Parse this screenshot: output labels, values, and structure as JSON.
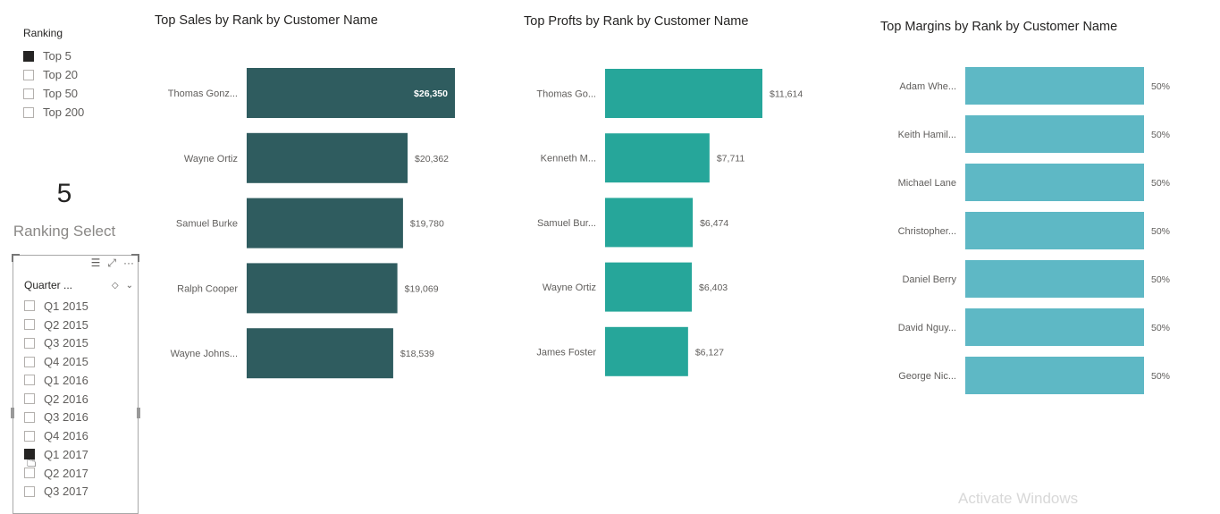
{
  "ranking_slicer": {
    "title": "Ranking",
    "items": [
      {
        "label": "Top 5",
        "checked": true
      },
      {
        "label": "Top 20",
        "checked": false
      },
      {
        "label": "Top 50",
        "checked": false
      },
      {
        "label": "Top 200",
        "checked": false
      }
    ]
  },
  "card": {
    "value": "5",
    "label": "Ranking Select"
  },
  "quarter_slicer": {
    "title": "Quarter ...",
    "items": [
      {
        "label": "Q1 2015",
        "checked": false
      },
      {
        "label": "Q2 2015",
        "checked": false
      },
      {
        "label": "Q3 2015",
        "checked": false
      },
      {
        "label": "Q4 2015",
        "checked": false
      },
      {
        "label": "Q1 2016",
        "checked": false
      },
      {
        "label": "Q2 2016",
        "checked": false
      },
      {
        "label": "Q3 2016",
        "checked": false
      },
      {
        "label": "Q4 2016",
        "checked": false
      },
      {
        "label": "Q1 2017",
        "checked": true
      },
      {
        "label": "Q2 2017",
        "checked": false
      },
      {
        "label": "Q3 2017",
        "checked": false
      }
    ]
  },
  "watermark": "Activate Windows",
  "chart_data": [
    {
      "type": "bar",
      "orientation": "horizontal",
      "title": "Top Sales by Rank by Customer Name",
      "categories": [
        "Thomas Gonz...",
        "Wayne Ortiz",
        "Samuel Burke",
        "Ralph Cooper",
        "Wayne Johns..."
      ],
      "values": [
        26350,
        20362,
        19780,
        19069,
        18539
      ],
      "value_labels": [
        "$26,350",
        "$20,362",
        "$19,780",
        "$19,069",
        "$18,539"
      ],
      "color": "#2f5c5f",
      "xlim": [
        0,
        26350
      ]
    },
    {
      "type": "bar",
      "orientation": "horizontal",
      "title": "Top Profts by Rank by Customer Name",
      "categories": [
        "Thomas Go...",
        "Kenneth M...",
        "Samuel Bur...",
        "Wayne Ortiz",
        "James Foster"
      ],
      "values": [
        11614,
        7711,
        6474,
        6403,
        6127
      ],
      "value_labels": [
        "$11,614",
        "$7,711",
        "$6,474",
        "$6,403",
        "$6,127"
      ],
      "color": "#26a69a",
      "xlim": [
        0,
        11614
      ]
    },
    {
      "type": "bar",
      "orientation": "horizontal",
      "title": "Top Margins by Rank by Customer Name",
      "categories": [
        "Adam Whe...",
        "Keith Hamil...",
        "Michael Lane",
        "Christopher...",
        "Daniel Berry",
        "David Nguy...",
        "George Nic..."
      ],
      "values": [
        50,
        50,
        50,
        50,
        50,
        50,
        50
      ],
      "value_labels": [
        "50%",
        "50%",
        "50%",
        "50%",
        "50%",
        "50%",
        "50%"
      ],
      "color": "#5eb8c5",
      "xlim": [
        0,
        50
      ]
    }
  ]
}
